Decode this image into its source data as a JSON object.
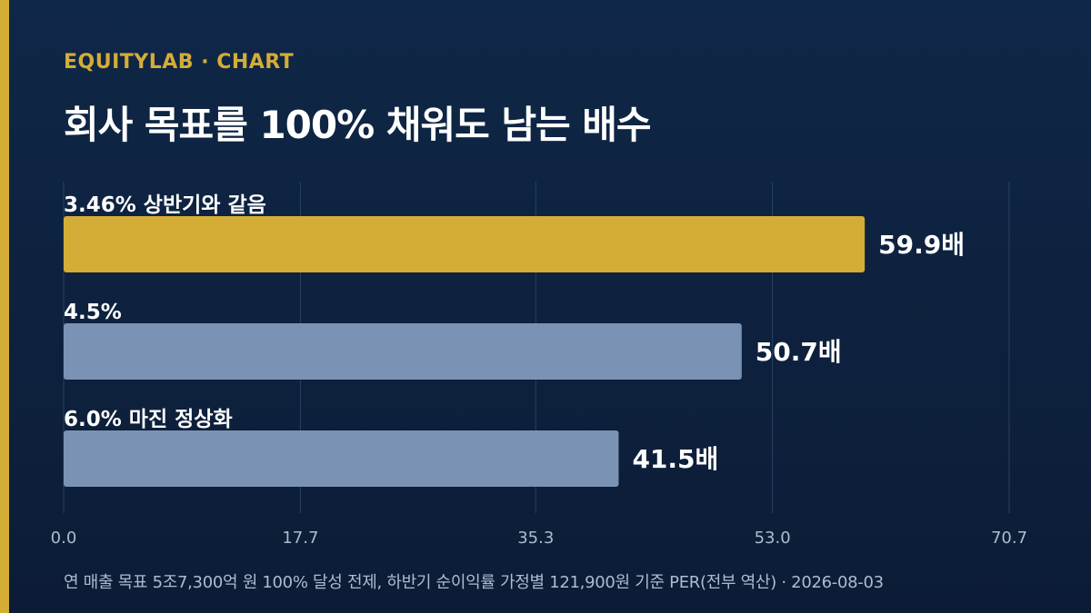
{
  "header": {
    "brand": "EQUITYLAB · CHART",
    "title": "회사 목표를 100% 채워도 남는 배수"
  },
  "footnote": "연 매출 목표 5조7,300억 원 100% 달성 전제, 하반기 순이익률 가정별 121,900원 기준 PER(전부 역산) · 2026-08-03",
  "colors": {
    "accent": "#d4ad37",
    "highlight_bar": "#d4ad37",
    "bar": "#7a93b5",
    "grid": "#2a4060",
    "tick_label": "#aebbd0"
  },
  "chart_data": {
    "type": "bar",
    "orientation": "horizontal",
    "categories": [
      "3.46% 상반기와 같음",
      "4.5%",
      "6.0% 마진 정상화"
    ],
    "values": [
      59.9,
      50.7,
      41.5
    ],
    "value_labels": [
      "59.9배",
      "50.7배",
      "41.5배"
    ],
    "highlight_index": 0,
    "xlim": [
      0,
      70.7
    ],
    "xticks": [
      0.0,
      17.7,
      35.3,
      53.0,
      70.7
    ],
    "xtick_labels": [
      "0.0",
      "17.7",
      "35.3",
      "53.0",
      "70.7"
    ],
    "grid": true
  }
}
